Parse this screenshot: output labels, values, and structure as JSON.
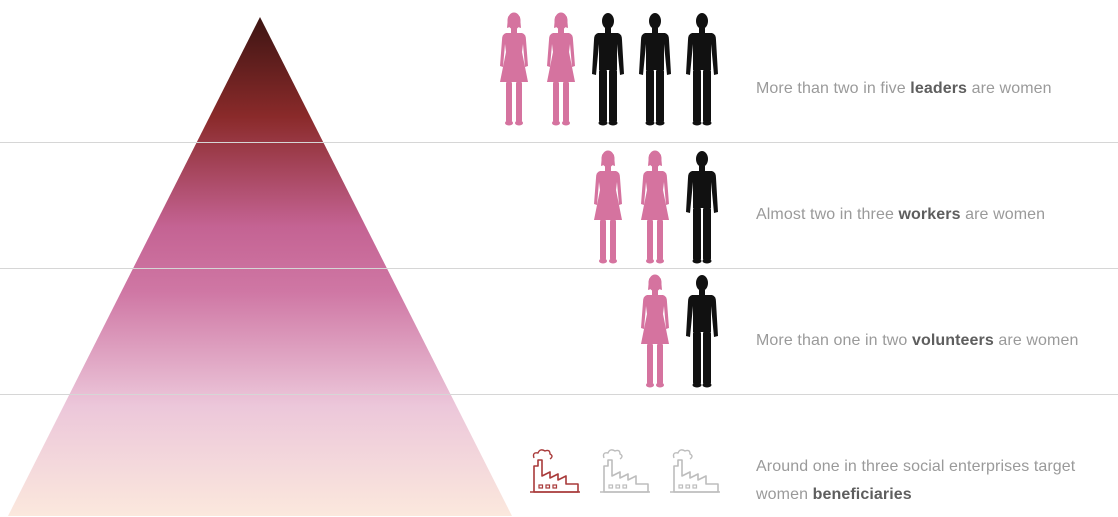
{
  "colors": {
    "woman": "#d5739f",
    "man": "#111111",
    "factory_highlight": "#a83a3a",
    "factory_muted": "#bdbdbd",
    "text": "#9a9a9a",
    "text_bold": "#5e5e5e",
    "pyramid_gradient": [
      "#3d1513",
      "#8a2a2a",
      "#c46393",
      "#cf77a4",
      "#ecc7da",
      "#fbe8dd"
    ]
  },
  "icons": {
    "woman": "woman-figure-icon",
    "man": "man-figure-icon",
    "factory": "factory-icon"
  },
  "rows": [
    {
      "key": "leaders",
      "pre": "More than two in five ",
      "bold": "leaders",
      "post": " are women",
      "women": 2,
      "total": 5
    },
    {
      "key": "workers",
      "pre": "Almost two in three ",
      "bold": "workers",
      "post": " are women",
      "women": 2,
      "total": 3
    },
    {
      "key": "volunteers",
      "pre": "More than one in two ",
      "bold": "volunteers",
      "post": " are women",
      "women": 1,
      "total": 2
    },
    {
      "key": "beneficiaries",
      "pre": "Around one in three social enterprises target",
      "line2_pre": "women ",
      "bold": "beneficiaries",
      "post": "",
      "highlighted": 1,
      "total": 3
    }
  ]
}
